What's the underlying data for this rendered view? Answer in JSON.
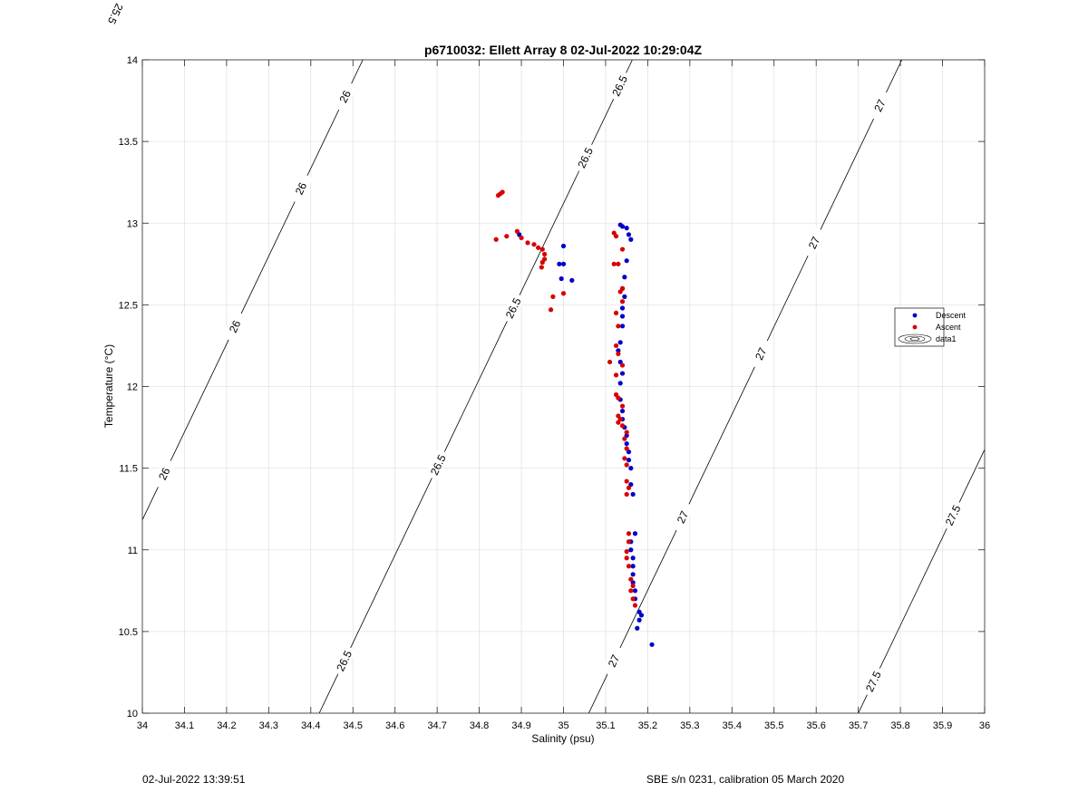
{
  "chart_data": {
    "type": "scatter",
    "title": "p6710032: Ellett Array 8 02-Jul-2022 10:29:04Z",
    "xlabel": "Salinity (psu)",
    "ylabel": "Temperature (°C)",
    "xlim": [
      34,
      36
    ],
    "ylim": [
      10,
      14
    ],
    "grid": true,
    "legend_position": "right",
    "x_ticks": [
      34,
      34.1,
      34.2,
      34.3,
      34.4,
      34.5,
      34.6,
      34.7,
      34.8,
      34.9,
      35,
      35.1,
      35.2,
      35.3,
      35.4,
      35.5,
      35.6,
      35.7,
      35.8,
      35.9,
      36
    ],
    "x_tick_labels": [
      "34",
      "34.1",
      "34.2",
      "34.3",
      "34.4",
      "34.5",
      "34.6",
      "34.7",
      "34.8",
      "34.9",
      "35",
      "35.1",
      "35.2",
      "35.3",
      "35.4",
      "35.5",
      "35.6",
      "35.7",
      "35.8",
      "35.9",
      "36"
    ],
    "y_ticks": [
      10,
      10.5,
      11,
      11.5,
      12,
      12.5,
      13,
      13.5,
      14
    ],
    "y_tick_labels": [
      "10",
      "10.5",
      "11",
      "11.5",
      "12",
      "12.5",
      "13",
      "13.5",
      "14"
    ],
    "series": [
      {
        "name": "Descent",
        "color": "#0000c8",
        "points": [
          [
            35.21,
            10.42
          ],
          [
            35.175,
            10.52
          ],
          [
            35.18,
            10.57
          ],
          [
            35.185,
            10.6
          ],
          [
            35.18,
            10.62
          ],
          [
            35.17,
            10.7
          ],
          [
            35.17,
            10.75
          ],
          [
            35.165,
            10.8
          ],
          [
            35.165,
            10.85
          ],
          [
            35.165,
            10.9
          ],
          [
            35.165,
            10.95
          ],
          [
            35.16,
            11.0
          ],
          [
            35.16,
            11.05
          ],
          [
            35.17,
            11.1
          ],
          [
            35.165,
            11.34
          ],
          [
            35.16,
            11.4
          ],
          [
            35.16,
            11.5
          ],
          [
            35.155,
            11.55
          ],
          [
            35.155,
            11.6
          ],
          [
            35.15,
            11.65
          ],
          [
            35.15,
            11.7
          ],
          [
            35.145,
            11.75
          ],
          [
            35.14,
            11.8
          ],
          [
            35.14,
            11.85
          ],
          [
            35.135,
            11.92
          ],
          [
            35.135,
            12.02
          ],
          [
            35.14,
            12.08
          ],
          [
            35.135,
            12.15
          ],
          [
            35.13,
            12.22
          ],
          [
            35.135,
            12.27
          ],
          [
            35.14,
            12.37
          ],
          [
            35.14,
            12.43
          ],
          [
            35.14,
            12.48
          ],
          [
            35.145,
            12.55
          ],
          [
            35.14,
            12.6
          ],
          [
            35.145,
            12.67
          ],
          [
            35.15,
            12.77
          ],
          [
            35.16,
            12.9
          ],
          [
            35.155,
            12.93
          ],
          [
            35.15,
            12.97
          ],
          [
            35.14,
            12.98
          ],
          [
            35.135,
            12.99
          ],
          [
            35.0,
            12.86
          ],
          [
            34.99,
            12.75
          ],
          [
            35.0,
            12.75
          ],
          [
            34.995,
            12.66
          ],
          [
            35.02,
            12.65
          ],
          [
            34.895,
            12.93
          ]
        ]
      },
      {
        "name": "Ascent",
        "color": "#d80000",
        "points": [
          [
            34.845,
            13.17
          ],
          [
            34.85,
            13.18
          ],
          [
            34.855,
            13.19
          ],
          [
            34.84,
            12.9
          ],
          [
            34.865,
            12.92
          ],
          [
            34.89,
            12.95
          ],
          [
            34.9,
            12.91
          ],
          [
            34.915,
            12.88
          ],
          [
            34.93,
            12.87
          ],
          [
            34.94,
            12.85
          ],
          [
            34.95,
            12.84
          ],
          [
            34.955,
            12.81
          ],
          [
            34.955,
            12.78
          ],
          [
            34.95,
            12.76
          ],
          [
            34.948,
            12.73
          ],
          [
            34.975,
            12.55
          ],
          [
            34.97,
            12.47
          ],
          [
            35.0,
            12.57
          ],
          [
            35.12,
            12.94
          ],
          [
            35.125,
            12.92
          ],
          [
            35.14,
            12.84
          ],
          [
            35.12,
            12.75
          ],
          [
            35.13,
            12.75
          ],
          [
            35.14,
            12.6
          ],
          [
            35.135,
            12.58
          ],
          [
            35.14,
            12.52
          ],
          [
            35.125,
            12.45
          ],
          [
            35.13,
            12.37
          ],
          [
            35.125,
            12.25
          ],
          [
            35.13,
            12.2
          ],
          [
            35.11,
            12.15
          ],
          [
            35.14,
            12.13
          ],
          [
            35.125,
            12.07
          ],
          [
            35.125,
            11.95
          ],
          [
            35.13,
            11.93
          ],
          [
            35.14,
            11.88
          ],
          [
            35.13,
            11.82
          ],
          [
            35.135,
            11.8
          ],
          [
            35.13,
            11.78
          ],
          [
            35.14,
            11.76
          ],
          [
            35.15,
            11.72
          ],
          [
            35.145,
            11.68
          ],
          [
            35.15,
            11.62
          ],
          [
            35.145,
            11.56
          ],
          [
            35.15,
            11.52
          ],
          [
            35.15,
            11.42
          ],
          [
            35.155,
            11.38
          ],
          [
            35.15,
            11.34
          ],
          [
            35.155,
            11.1
          ],
          [
            35.155,
            11.05
          ],
          [
            35.15,
            10.99
          ],
          [
            35.15,
            10.95
          ],
          [
            35.155,
            10.9
          ],
          [
            35.16,
            10.82
          ],
          [
            35.165,
            10.78
          ],
          [
            35.16,
            10.75
          ],
          [
            35.165,
            10.7
          ],
          [
            35.17,
            10.66
          ]
        ]
      }
    ],
    "density_contours": [
      {
        "sigma": 25.5,
        "labels": [
          {
            "text": "25.5",
            "t": 0.55
          }
        ]
      },
      {
        "sigma": 26,
        "labels": [
          {
            "text": "26",
            "t": 0.1
          },
          {
            "text": "26",
            "t": 0.42
          },
          {
            "text": "26",
            "t": 0.72
          },
          {
            "text": "26",
            "t": 0.92
          }
        ]
      },
      {
        "sigma": 26.5,
        "labels": [
          {
            "text": "26.5",
            "t": 0.08
          },
          {
            "text": "26.5",
            "t": 0.38
          },
          {
            "text": "26.5",
            "t": 0.62
          },
          {
            "text": "26.5",
            "t": 0.85
          },
          {
            "text": "26.5",
            "t": 0.96
          }
        ]
      },
      {
        "sigma": 27,
        "labels": [
          {
            "text": "27",
            "t": 0.08
          },
          {
            "text": "27",
            "t": 0.3
          },
          {
            "text": "27",
            "t": 0.55
          },
          {
            "text": "27",
            "t": 0.72
          },
          {
            "text": "27",
            "t": 0.93
          }
        ]
      },
      {
        "sigma": 27.5,
        "labels": [
          {
            "text": "27.5",
            "t": 0.12
          },
          {
            "text": "27.5",
            "t": 0.75
          }
        ]
      }
    ],
    "legend": [
      {
        "label": "Descent",
        "marker": "dot",
        "color": "#0000c8"
      },
      {
        "label": "Ascent",
        "marker": "dot",
        "color": "#d80000"
      },
      {
        "label": "data1",
        "marker": "contour",
        "color": "#000000"
      }
    ]
  },
  "footer": {
    "timestamp": "02-Jul-2022 13:39:51",
    "instrument": "SBE s/n 0231, calibration 05 March 2020"
  }
}
